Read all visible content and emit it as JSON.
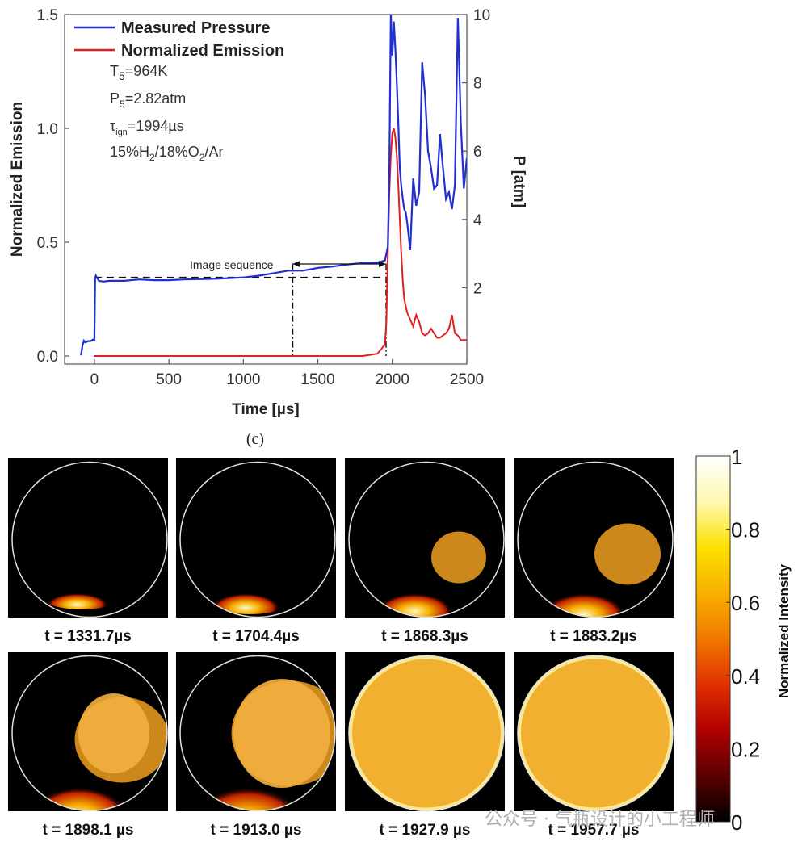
{
  "chart_data": {
    "type": "line",
    "xlabel": "Time [µs]",
    "ylabel_left": "Normalized Emission",
    "ylabel_right": "P [atm]",
    "xlim": [
      -200,
      2500
    ],
    "ylim_left": [
      0,
      1.5
    ],
    "ylim_right": [
      0,
      10
    ],
    "x_ticks": [
      0,
      500,
      1000,
      1500,
      2000,
      2500
    ],
    "y_ticks_left": [
      "0.0",
      "0.5",
      "1.0",
      "1.5"
    ],
    "y_ticks_right": [
      2,
      4,
      6,
      8,
      10
    ],
    "legend": [
      "Measured Pressure",
      "Normalized Emission"
    ],
    "annotations": {
      "temperature": {
        "base": "T",
        "sub": "5",
        "rest": "=964K"
      },
      "pressure": {
        "base": "P",
        "sub": "5",
        "rest": "=2.82atm"
      },
      "ignition": {
        "base": "τ",
        "sub": "ign",
        "rest": "=1994µs"
      },
      "mixture": [
        "15%H",
        "2",
        "/18%O",
        "2",
        "/Ar"
      ],
      "image_sequence": "Image sequence"
    },
    "panel_label": "(c)",
    "series": [
      {
        "name": "Measured Pressure",
        "color": "#1f2fd0",
        "axis": "right",
        "x": [
          -90,
          -80,
          -70,
          -60,
          -50,
          -40,
          -30,
          -20,
          -10,
          0,
          5,
          10,
          30,
          60,
          100,
          200,
          300,
          400,
          500,
          600,
          700,
          800,
          900,
          1000,
          1100,
          1200,
          1300,
          1400,
          1500,
          1600,
          1700,
          1800,
          1850,
          1900,
          1950,
          1970,
          1980,
          1990,
          2000,
          2010,
          2020,
          2030,
          2040,
          2050,
          2060,
          2070,
          2080,
          2090,
          2100,
          2120,
          2140,
          2160,
          2180,
          2200,
          2220,
          2240,
          2260,
          2280,
          2300,
          2320,
          2340,
          2360,
          2380,
          2400,
          2420,
          2440,
          2460,
          2480,
          2500
        ],
        "y": [
          0.02,
          0.3,
          0.45,
          0.4,
          0.42,
          0.44,
          0.43,
          0.45,
          0.48,
          0.47,
          2.25,
          2.35,
          2.2,
          2.18,
          2.2,
          2.2,
          2.24,
          2.22,
          2.22,
          2.24,
          2.25,
          2.26,
          2.28,
          2.3,
          2.35,
          2.42,
          2.5,
          2.5,
          2.58,
          2.62,
          2.68,
          2.72,
          2.72,
          2.73,
          2.8,
          3.2,
          5.5,
          10.0,
          8.8,
          9.8,
          9.0,
          8.0,
          6.8,
          5.5,
          5.0,
          4.6,
          4.3,
          4.2,
          3.9,
          3.1,
          5.2,
          4.4,
          4.8,
          8.6,
          7.6,
          6.0,
          5.5,
          4.9,
          5.0,
          6.5,
          5.5,
          4.6,
          4.8,
          4.3,
          5.0,
          9.9,
          6.8,
          4.9,
          5.8
        ]
      },
      {
        "name": "Normalized Emission",
        "color": "#e02020",
        "axis": "left",
        "x": [
          0,
          200,
          400,
          600,
          800,
          1000,
          1200,
          1400,
          1600,
          1800,
          1900,
          1950,
          1960,
          1970,
          1980,
          1990,
          2000,
          2010,
          2020,
          2030,
          2040,
          2050,
          2060,
          2070,
          2080,
          2100,
          2120,
          2140,
          2160,
          2180,
          2200,
          2220,
          2240,
          2260,
          2280,
          2300,
          2320,
          2340,
          2360,
          2380,
          2400,
          2420,
          2440,
          2460,
          2480,
          2500
        ],
        "y": [
          0.0,
          0.0,
          0.0,
          0.0,
          0.0,
          0.0,
          0.0,
          0.0,
          0.0,
          0.0,
          0.01,
          0.05,
          0.15,
          0.45,
          0.72,
          0.88,
          0.98,
          1.0,
          0.96,
          0.88,
          0.75,
          0.6,
          0.45,
          0.33,
          0.25,
          0.19,
          0.16,
          0.13,
          0.18,
          0.15,
          0.1,
          0.09,
          0.1,
          0.12,
          0.1,
          0.08,
          0.08,
          0.09,
          0.1,
          0.12,
          0.18,
          0.1,
          0.09,
          0.07,
          0.07,
          0.07
        ]
      }
    ],
    "reference_lines": {
      "dashed_pressure": 2.3,
      "dashed_end_x": 1950,
      "image_sequence_start_x": 1331.7,
      "image_sequence_end_x": 1957.7
    }
  },
  "frames": [
    {
      "caption": "t = 1331.7µs",
      "fill": 0.0
    },
    {
      "caption": "t = 1704.4µs",
      "fill": 0.1
    },
    {
      "caption": "t = 1868.3µs",
      "fill": 0.2
    },
    {
      "caption": "t = 1883.2µs",
      "fill": 0.3
    },
    {
      "caption": "t = 1898.1 µs",
      "fill": 0.55
    },
    {
      "caption": "t = 1913.0 µs",
      "fill": 0.75
    },
    {
      "caption": "t = 1927.9 µs",
      "fill": 1.0
    },
    {
      "caption": "t = 1957.7 µs",
      "fill": 1.0
    }
  ],
  "colorbar": {
    "title": "Normalized Intensity",
    "ticks": [
      "0",
      "0.2",
      "0.4",
      "0.6",
      "0.8",
      "1"
    ],
    "stops": [
      "#000000",
      "#5a0000",
      "#b00000",
      "#e03000",
      "#f07800",
      "#f8b000",
      "#fbe000",
      "#fff8b0",
      "#ffffff"
    ]
  },
  "watermark": "公众号 · 气瓶设计的小工程师"
}
